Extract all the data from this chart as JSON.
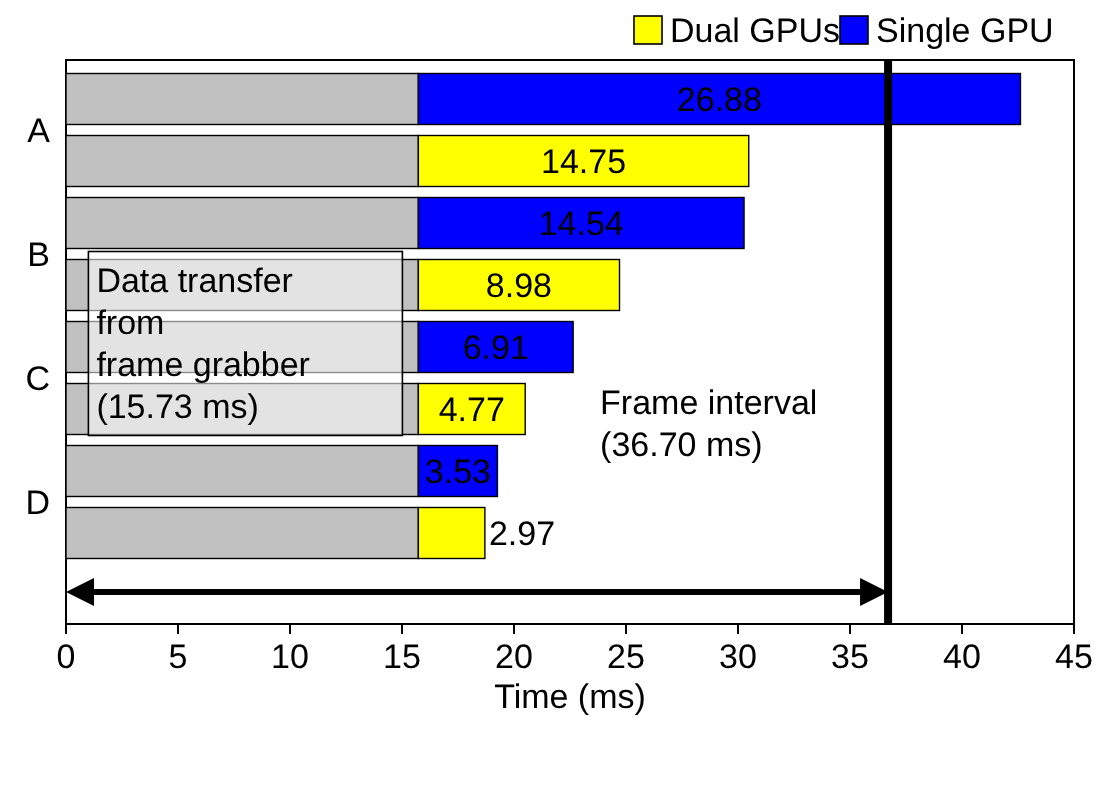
{
  "chart_data": {
    "type": "bar",
    "orientation": "horizontal",
    "stacked": true,
    "xlabel": "Time (ms)",
    "categories": [
      "A",
      null,
      "B",
      null,
      "C",
      null,
      "D",
      null
    ],
    "series": [
      {
        "color": "#c0c0c0",
        "values": [
          15.73,
          15.73,
          15.73,
          15.73,
          15.73,
          15.73,
          15.73,
          15.73
        ],
        "value_labels": [
          null,
          null,
          null,
          null,
          null,
          null,
          null,
          null
        ]
      },
      {
        "name": "Dual GPUs",
        "color": "#ffff00",
        "values": [
          null,
          14.75,
          null,
          8.98,
          null,
          4.77,
          null,
          2.97
        ],
        "value_labels": [
          null,
          "14.75",
          null,
          "8.98",
          null,
          "4.77",
          null,
          "2.97"
        ]
      },
      {
        "name": "Single GPU",
        "color": "#0000ff",
        "values": [
          26.88,
          null,
          14.54,
          null,
          6.91,
          null,
          3.53,
          null
        ],
        "value_labels": [
          "26.88",
          null,
          "14.54",
          null,
          "6.91",
          null,
          "3.53",
          null
        ]
      }
    ],
    "xlim": [
      0,
      45
    ],
    "xticks": [
      0,
      5,
      10,
      15,
      20,
      25,
      30,
      35,
      40,
      45
    ],
    "legend": "top right",
    "grid": false,
    "ref_lines": [
      {
        "axis": "x",
        "value": 36.7,
        "label": "Frame interval\n(36.70 ms)",
        "color": "#000000"
      }
    ],
    "annotations": [
      "Data transfer\nfrom\nframe grabber\n(15.73 ms)"
    ]
  }
}
